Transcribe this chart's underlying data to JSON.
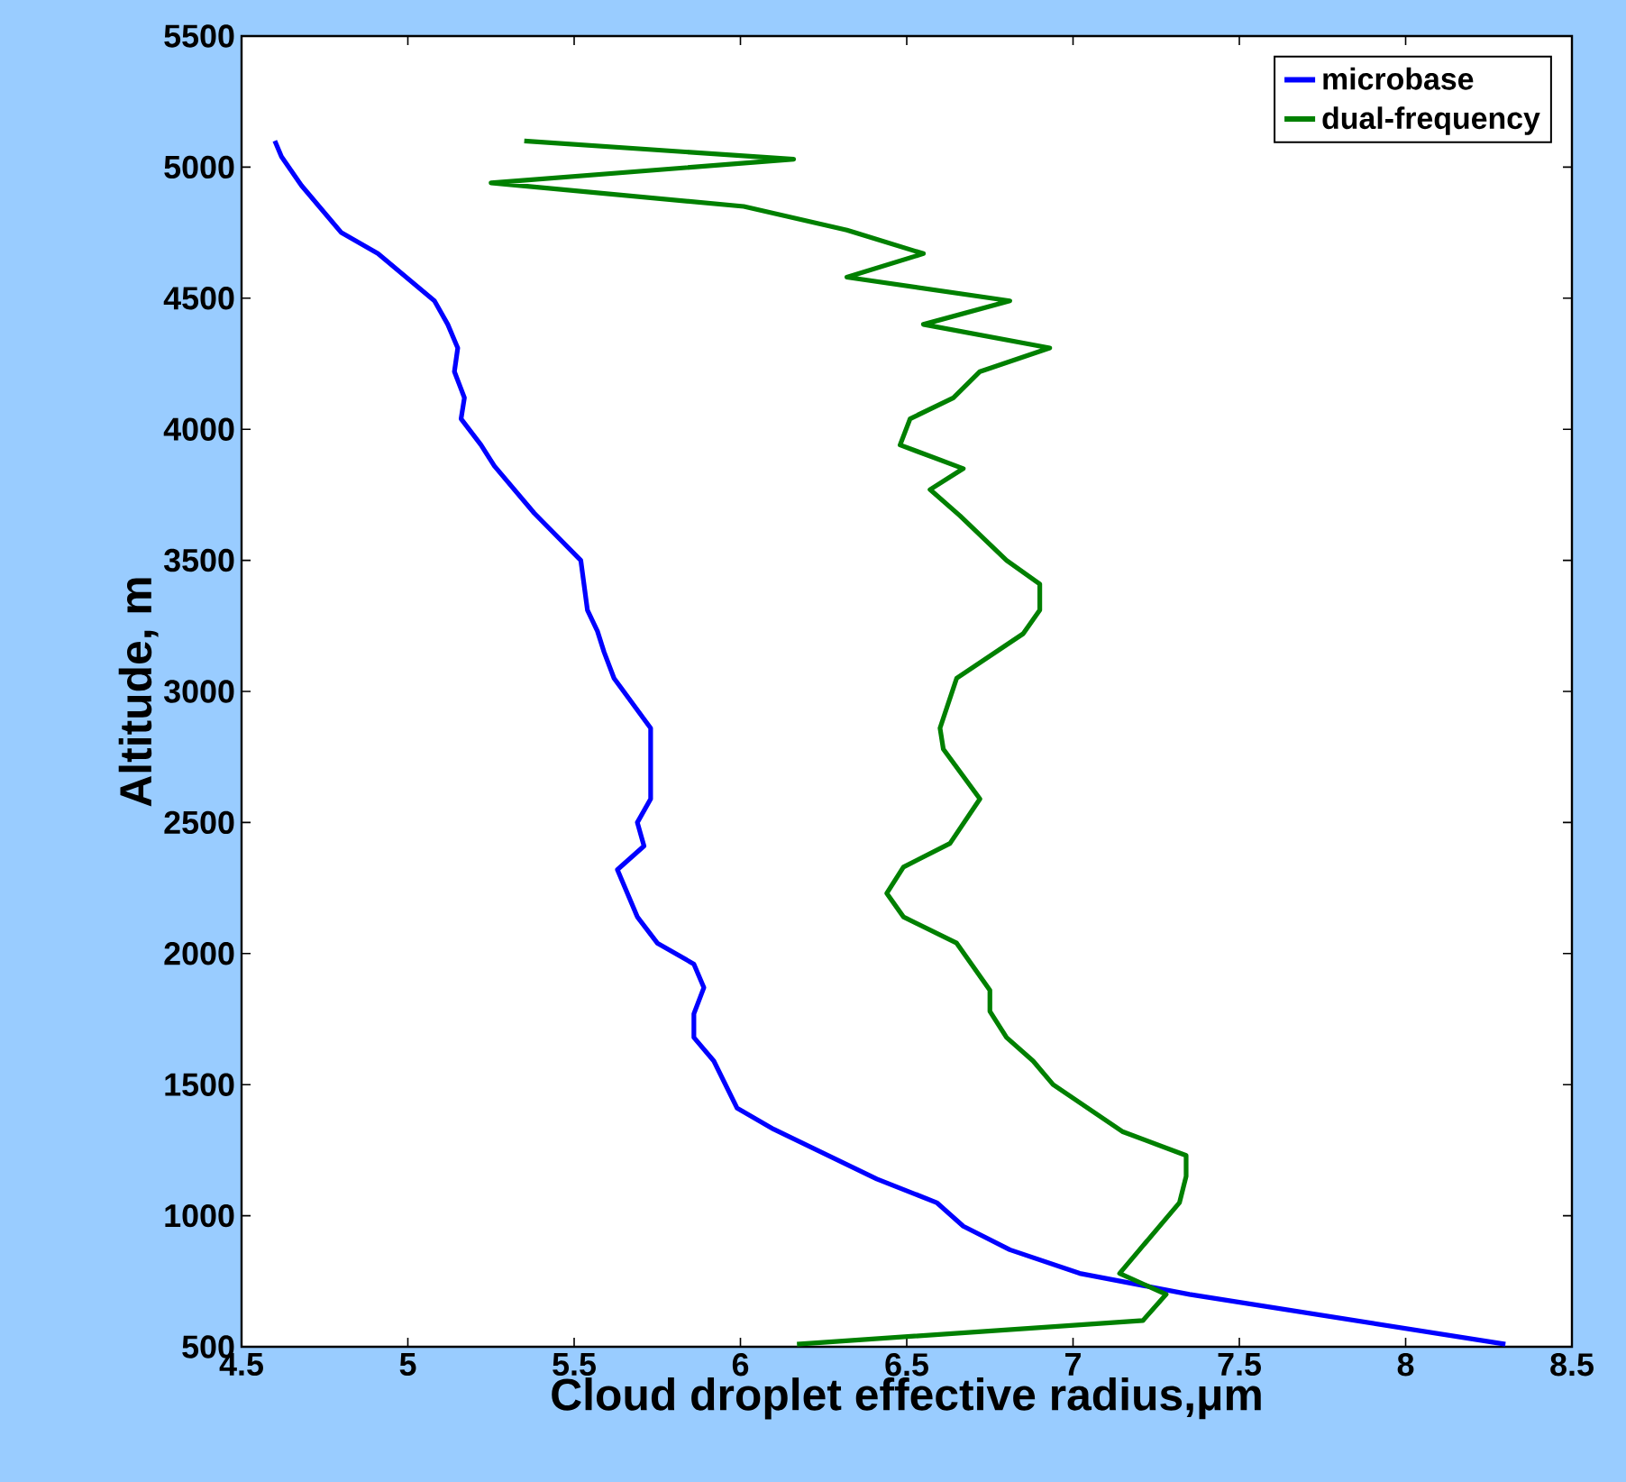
{
  "chart_data": {
    "type": "line",
    "xlabel": "Cloud droplet effective radius,μm",
    "ylabel": "Altitude, m",
    "xlim": [
      4.5,
      8.5
    ],
    "xticks": [
      4.5,
      5,
      5.5,
      6,
      6.5,
      7,
      7.5,
      8,
      8.5
    ],
    "ylim": [
      500,
      5500
    ],
    "yticks": [
      500,
      1000,
      1500,
      2000,
      2500,
      3000,
      3500,
      4000,
      4500,
      5000,
      5500
    ],
    "legend": "top right",
    "grid": false,
    "marker": "none",
    "line_style": "solid",
    "series": [
      {
        "name": "microbase",
        "color": "#0000ff",
        "x": [
          4.6,
          4.62,
          4.68,
          4.8,
          4.91,
          5.08,
          5.12,
          5.15,
          5.14,
          5.17,
          5.16,
          5.22,
          5.26,
          5.38,
          5.52,
          5.54,
          5.57,
          5.59,
          5.62,
          5.73,
          5.73,
          5.69,
          5.71,
          5.63,
          5.69,
          5.75,
          5.86,
          5.89,
          5.86,
          5.86,
          5.92,
          5.99,
          6.1,
          6.41,
          6.59,
          6.67,
          6.81,
          7.02,
          7.35,
          8.3
        ],
        "values": [
          5100,
          5040,
          4930,
          4750,
          4670,
          4490,
          4400,
          4310,
          4220,
          4120,
          4040,
          3940,
          3860,
          3680,
          3500,
          3310,
          3230,
          3150,
          3050,
          2860,
          2590,
          2500,
          2410,
          2320,
          2140,
          2040,
          1960,
          1870,
          1770,
          1680,
          1590,
          1410,
          1330,
          1140,
          1050,
          960,
          870,
          780,
          700,
          510
        ]
      },
      {
        "name": "dual-frequency",
        "color": "#008000",
        "x": [
          5.35,
          6.16,
          5.25,
          6.01,
          6.32,
          6.55,
          6.32,
          6.81,
          6.55,
          6.93,
          6.72,
          6.64,
          6.51,
          6.48,
          6.67,
          6.57,
          6.66,
          6.8,
          6.9,
          6.9,
          6.85,
          6.65,
          6.6,
          6.61,
          6.72,
          6.63,
          6.49,
          6.44,
          6.49,
          6.65,
          6.75,
          6.75,
          6.8,
          6.88,
          6.94,
          7.15,
          7.34,
          7.34,
          7.32,
          7.14,
          7.28,
          7.21,
          6.17
        ],
        "values": [
          5100,
          5030,
          4940,
          4850,
          4760,
          4670,
          4580,
          4490,
          4400,
          4310,
          4220,
          4120,
          4040,
          3940,
          3850,
          3770,
          3670,
          3500,
          3410,
          3310,
          3220,
          3050,
          2860,
          2780,
          2590,
          2420,
          2330,
          2230,
          2140,
          2040,
          1860,
          1780,
          1680,
          1590,
          1500,
          1320,
          1230,
          1150,
          1050,
          780,
          700,
          600,
          510
        ]
      }
    ]
  }
}
